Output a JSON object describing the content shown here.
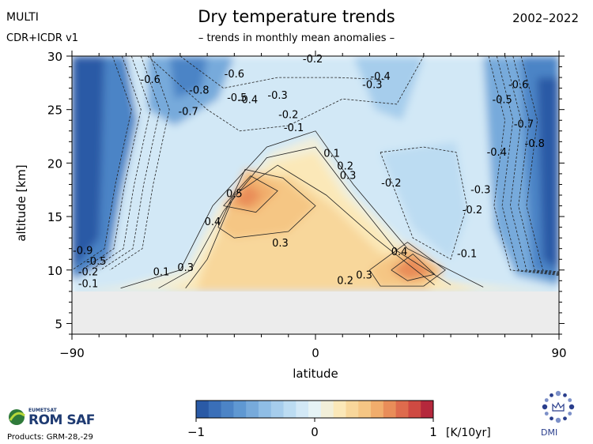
{
  "header": {
    "title": "Dry temperature trends",
    "subtitle": "– trends in monthly mean anomalies –",
    "instrument": "MULTI",
    "dataset": "CDR+ICDR v1",
    "period": "2002–2022"
  },
  "footer": {
    "logo_org": "EUMETSAT",
    "logo_name": "ROM SAF",
    "products": "Products: GRM-28,-29",
    "dmi": "DMI"
  },
  "colors": {
    "cold": [
      "#2a5aa6",
      "#3a6fb8",
      "#4c84c6",
      "#5f98d2",
      "#77aadb",
      "#8fbde5",
      "#a6cdec",
      "#bcdcf2",
      "#d2e8f6",
      "#e6f3f5"
    ],
    "warm": [
      "#f2efd9",
      "#fbe8b8",
      "#f8d79b",
      "#f5c684",
      "#f1ad6c",
      "#e98d59",
      "#de6b4d",
      "#cf4a42",
      "#b5283c"
    ],
    "no_data": "#ececec",
    "below_surface": "#ececec"
  },
  "chart_data": {
    "type": "heatmap",
    "title": "Dry temperature trends",
    "xlabel": "latitude",
    "ylabel": "altitude [km]",
    "xlim": [
      -90,
      90
    ],
    "ylim": [
      4,
      30
    ],
    "x_ticks": [
      -90,
      0,
      90
    ],
    "y_ticks": [
      5,
      10,
      15,
      20,
      25,
      30
    ],
    "no_data_below_km": 8,
    "colorbar": {
      "min": -1,
      "max": 1,
      "step": 0.1,
      "tick_labels": [
        "−1",
        "0",
        "1"
      ],
      "unit": "[K/10yr]"
    },
    "contour_labels": [
      {
        "text": "-0.6",
        "lat": -61,
        "alt": 27.5
      },
      {
        "text": "-0.8",
        "lat": -43,
        "alt": 26.5
      },
      {
        "text": "-0.7",
        "lat": -47,
        "alt": 24.5
      },
      {
        "text": "-0.6",
        "lat": -30,
        "alt": 28.0
      },
      {
        "text": "-0.5",
        "lat": -29,
        "alt": 25.8
      },
      {
        "text": "-0.4",
        "lat": -25,
        "alt": 25.6
      },
      {
        "text": "-0.3",
        "lat": -14,
        "alt": 26.0
      },
      {
        "text": "-0.2",
        "lat": -10,
        "alt": 24.2
      },
      {
        "text": "-0.1",
        "lat": -8,
        "alt": 23.0
      },
      {
        "text": "-0.2",
        "lat": -1,
        "alt": 29.4
      },
      {
        "text": "-0.4",
        "lat": 24,
        "alt": 27.8
      },
      {
        "text": "-0.3",
        "lat": 21,
        "alt": 27.0
      },
      {
        "text": "0.1",
        "lat": 6,
        "alt": 20.6
      },
      {
        "text": "0.2",
        "lat": 11,
        "alt": 19.4
      },
      {
        "text": "0.3",
        "lat": 12,
        "alt": 18.5
      },
      {
        "text": "-0.2",
        "lat": 28,
        "alt": 17.8
      },
      {
        "text": "0.5",
        "lat": -30,
        "alt": 16.8
      },
      {
        "text": "0.4",
        "lat": -38,
        "alt": 14.2
      },
      {
        "text": "0.3",
        "lat": -13,
        "alt": 12.2
      },
      {
        "text": "0.4",
        "lat": 31,
        "alt": 11.4
      },
      {
        "text": "0.3",
        "lat": 18,
        "alt": 9.2
      },
      {
        "text": "0.2",
        "lat": 11,
        "alt": 8.7
      },
      {
        "text": "0.1",
        "lat": -57,
        "alt": 9.5
      },
      {
        "text": "0.3",
        "lat": -48,
        "alt": 9.9
      },
      {
        "text": "-0.1",
        "lat": 56,
        "alt": 11.2
      },
      {
        "text": "-0.2",
        "lat": 58,
        "alt": 15.3
      },
      {
        "text": "-0.3",
        "lat": 61,
        "alt": 17.2
      },
      {
        "text": "-0.5",
        "lat": 69,
        "alt": 25.6
      },
      {
        "text": "-0.6",
        "lat": 75,
        "alt": 27.0
      },
      {
        "text": "-0.7",
        "lat": 77,
        "alt": 23.3
      },
      {
        "text": "-0.4",
        "lat": 67,
        "alt": 20.7
      },
      {
        "text": "-0.8",
        "lat": 81,
        "alt": 21.5
      },
      {
        "text": "-0.9",
        "lat": -86,
        "alt": 11.5
      },
      {
        "text": "-0.5",
        "lat": -81,
        "alt": 10.5
      },
      {
        "text": "-0.2",
        "lat": -84,
        "alt": 9.5
      },
      {
        "text": "-0.1",
        "lat": -84,
        "alt": 8.4
      }
    ]
  }
}
